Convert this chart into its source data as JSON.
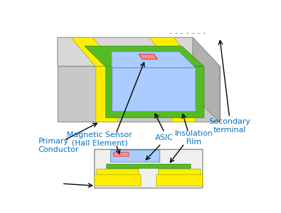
{
  "bg_color": "#ffffff",
  "labels": {
    "primary_conductor": "Primary\nConductor",
    "magnetic_sensor": "Magnetic Sensor\n(Hall Element)",
    "asic": "ASIC",
    "insulation_film": "Insulation\nFilm",
    "secondary_terminal": "Secondary\nterminal",
    "dots": ". . . . . . ."
  },
  "label_color": "#0070c0",
  "label_fontsize": 8.0,
  "colors": {
    "gray_front": "#c8c8c8",
    "gray_top": "#d8d8d8",
    "gray_right": "#b0b0b0",
    "yellow": "#ffee00",
    "yellow_edge": "#aaaa00",
    "green": "#55bb22",
    "green_edge": "#338811",
    "blue_chip": "#aaccff",
    "blue_edge": "#6699bb",
    "red_hall": "#ff8888",
    "red_edge": "#cc4444",
    "cs_bg": "#f0f0f0",
    "cs_edge": "#888888"
  }
}
